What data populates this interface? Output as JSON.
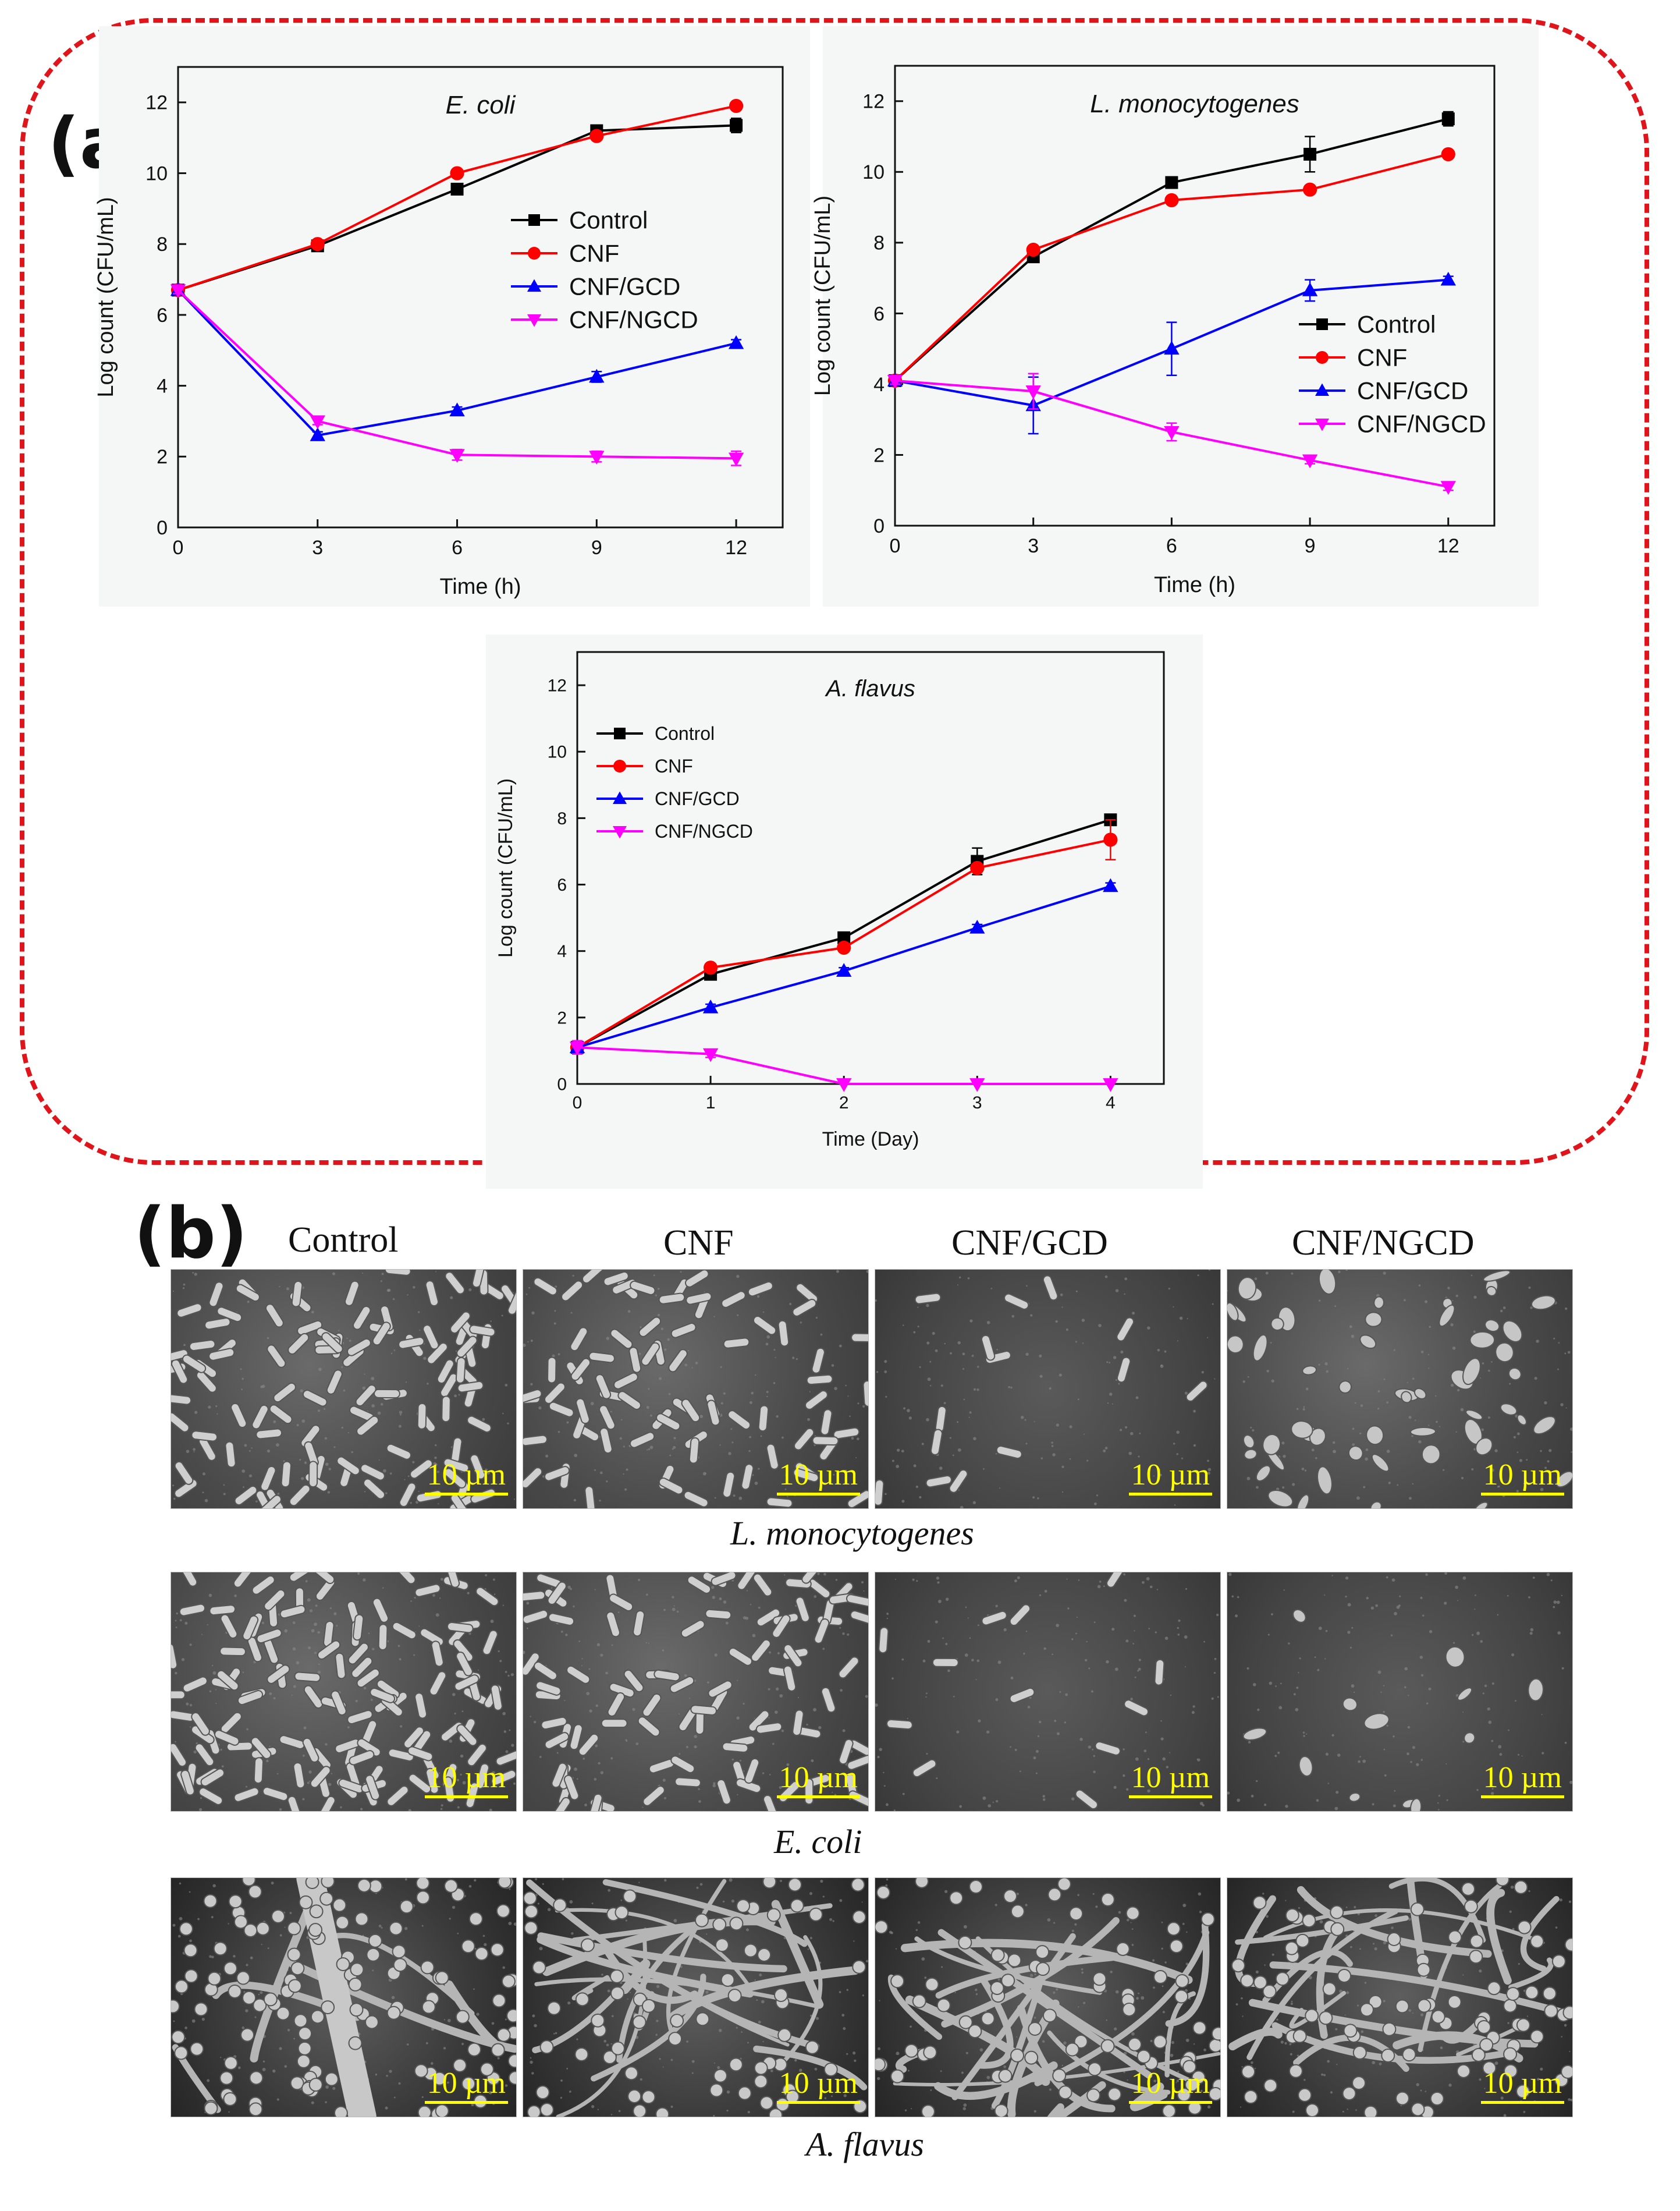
{
  "panel_a": {
    "label": "(a)"
  },
  "panel_b": {
    "label": "(b)",
    "columns": [
      "Control",
      "CNF",
      "CNF/GCD",
      "CNF/NGCD"
    ],
    "rows": [
      {
        "species": "L. monocytogenes",
        "scale": [
          "10 µm",
          "10 µm",
          "10 µm",
          "10 µm"
        ]
      },
      {
        "species": "E. coli",
        "scale": [
          "10 µm",
          "10 µm",
          "10 µm",
          "10 µm"
        ]
      },
      {
        "species": "A. flavus",
        "scale": [
          "10 µm",
          "10 µm",
          "10 µm",
          "10 µm"
        ]
      }
    ]
  },
  "chart_data": [
    {
      "type": "line",
      "title": "E. coli",
      "xlabel": "Time (h)",
      "ylabel": "Log count (CFU/mL)",
      "x": [
        0,
        3,
        6,
        9,
        12
      ],
      "xticks": [
        "0",
        "3",
        "6",
        "9",
        "12"
      ],
      "yticks": [
        "0",
        "2",
        "4",
        "6",
        "8",
        "10",
        "12"
      ],
      "xlim": [
        0,
        13
      ],
      "ylim": [
        0,
        13
      ],
      "legend_position": "center-right",
      "series": [
        {
          "name": "Control",
          "color": "#000000",
          "marker": "square",
          "values": [
            6.7,
            7.95,
            9.55,
            11.2,
            11.35
          ],
          "errors": [
            0.1,
            0.1,
            0.1,
            0.1,
            0.2
          ]
        },
        {
          "name": "CNF",
          "color": "#ff0000",
          "marker": "circle",
          "values": [
            6.7,
            8.0,
            10.0,
            11.05,
            11.9
          ],
          "errors": [
            0.1,
            0.1,
            0.05,
            0.05,
            0.1
          ]
        },
        {
          "name": "CNF/GCD",
          "color": "#0000ff",
          "marker": "triangle-up",
          "values": [
            6.7,
            2.6,
            3.3,
            4.25,
            5.2
          ],
          "errors": [
            0.1,
            0.1,
            0.1,
            0.15,
            0.1
          ]
        },
        {
          "name": "CNF/NGCD",
          "color": "#ff00ff",
          "marker": "triangle-down",
          "values": [
            6.7,
            3.0,
            2.05,
            2.0,
            1.95
          ],
          "errors": [
            0.1,
            0.1,
            0.15,
            0.15,
            0.2
          ]
        }
      ]
    },
    {
      "type": "line",
      "title": "L. monocytogenes",
      "xlabel": "Time (h)",
      "ylabel": "Log count (CFU/mL)",
      "x": [
        0,
        3,
        6,
        9,
        12
      ],
      "xticks": [
        "0",
        "3",
        "6",
        "9",
        "12"
      ],
      "yticks": [
        "0",
        "2",
        "4",
        "6",
        "8",
        "10",
        "12"
      ],
      "xlim": [
        0,
        13
      ],
      "ylim": [
        0,
        13
      ],
      "legend_position": "center-right",
      "series": [
        {
          "name": "Control",
          "color": "#000000",
          "marker": "square",
          "values": [
            4.1,
            7.6,
            9.7,
            10.5,
            11.5
          ],
          "errors": [
            0.1,
            0.1,
            0.1,
            0.5,
            0.2
          ]
        },
        {
          "name": "CNF",
          "color": "#ff0000",
          "marker": "circle",
          "values": [
            4.1,
            7.8,
            9.2,
            9.5,
            10.5
          ],
          "errors": [
            0.1,
            0.1,
            0.05,
            0.05,
            0.1
          ]
        },
        {
          "name": "CNF/GCD",
          "color": "#0000ff",
          "marker": "triangle-up",
          "values": [
            4.1,
            3.4,
            5.0,
            6.65,
            6.95
          ],
          "errors": [
            0.1,
            0.8,
            0.75,
            0.3,
            0.1
          ]
        },
        {
          "name": "CNF/NGCD",
          "color": "#ff00ff",
          "marker": "triangle-down",
          "values": [
            4.1,
            3.8,
            2.65,
            1.85,
            1.1
          ],
          "errors": [
            0.1,
            0.5,
            0.25,
            0.1,
            0.1
          ]
        }
      ]
    },
    {
      "type": "line",
      "title": "A. flavus",
      "xlabel": "Time (Day)",
      "ylabel": "Log count (CFU/mL)",
      "x": [
        0,
        1,
        2,
        3,
        4
      ],
      "xticks": [
        "0",
        "1",
        "2",
        "3",
        "4"
      ],
      "yticks": [
        "0",
        "2",
        "4",
        "6",
        "8",
        "10",
        "12"
      ],
      "xlim": [
        0,
        4.4
      ],
      "ylim": [
        0,
        13
      ],
      "legend_position": "upper-left",
      "series": [
        {
          "name": "Control",
          "color": "#000000",
          "marker": "square",
          "values": [
            1.1,
            3.3,
            4.4,
            6.7,
            7.95
          ],
          "errors": [
            0.1,
            0.1,
            0.1,
            0.4,
            0.15
          ]
        },
        {
          "name": "CNF",
          "color": "#ff0000",
          "marker": "circle",
          "values": [
            1.1,
            3.5,
            4.1,
            6.5,
            7.35
          ],
          "errors": [
            0.1,
            0.1,
            0.1,
            0.1,
            0.6
          ]
        },
        {
          "name": "CNF/GCD",
          "color": "#0000ff",
          "marker": "triangle-up",
          "values": [
            1.1,
            2.3,
            3.4,
            4.7,
            5.95
          ],
          "errors": [
            0.1,
            0.1,
            0.1,
            0.1,
            0.1
          ]
        },
        {
          "name": "CNF/NGCD",
          "color": "#ff00ff",
          "marker": "triangle-down",
          "values": [
            1.1,
            0.9,
            0.0,
            0.0,
            0.0
          ],
          "errors": [
            0.2,
            0.1,
            0,
            0,
            0
          ]
        }
      ]
    }
  ]
}
